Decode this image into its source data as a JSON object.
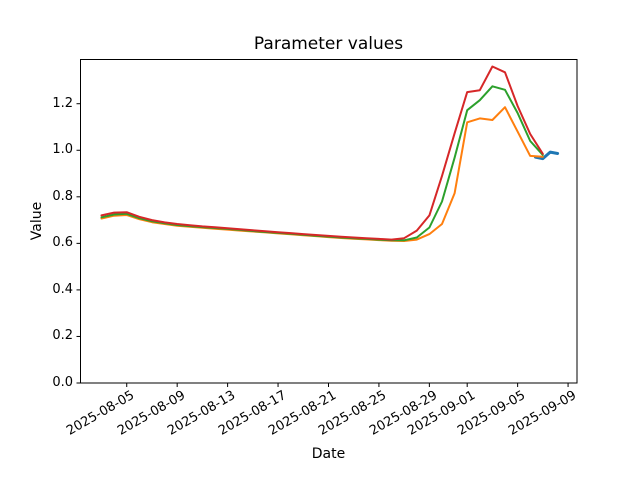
{
  "figure": {
    "background": "#ffffff"
  },
  "chart_data": {
    "type": "line",
    "title": "Parameter values",
    "xlabel": "Date",
    "ylabel": "Value",
    "grid": false,
    "legend": "none",
    "axis_color": "#000000",
    "ylim": [
      0.0,
      1.39
    ],
    "xlim": [
      "2025-08-01T08:00:00Z",
      "2025-09-09T17:00:00Z"
    ],
    "y_tick_labels": [
      "0.0",
      "0.2",
      "0.4",
      "0.6",
      "0.8",
      "1.0",
      "1.2"
    ],
    "x_tick_labels": [
      "2025-08-05",
      "2025-08-09",
      "2025-08-13",
      "2025-08-17",
      "2025-08-21",
      "2025-08-25",
      "2025-08-29",
      "2025-09-01",
      "2025-09-05",
      "2025-09-09"
    ],
    "x_tick_rotation_deg": 30,
    "dates": [
      "2025-08-03",
      "2025-08-04",
      "2025-08-05",
      "2025-08-06",
      "2025-08-07",
      "2025-08-08",
      "2025-08-09",
      "2025-08-10",
      "2025-08-11",
      "2025-08-12",
      "2025-08-13",
      "2025-08-14",
      "2025-08-15",
      "2025-08-16",
      "2025-08-17",
      "2025-08-18",
      "2025-08-19",
      "2025-08-20",
      "2025-08-21",
      "2025-08-22",
      "2025-08-23",
      "2025-08-24",
      "2025-08-25",
      "2025-08-26",
      "2025-08-27",
      "2025-08-28",
      "2025-08-29",
      "2025-08-30",
      "2025-08-31",
      "2025-09-01",
      "2025-09-02",
      "2025-09-03",
      "2025-09-04",
      "2025-09-05",
      "2025-09-06",
      "2025-09-07"
    ],
    "series": [
      {
        "name": "blue",
        "color": "#1f77b4",
        "line_width": 3,
        "x": [
          "2025-09-06T10:00:00Z",
          "2025-09-07T00:00:00Z",
          "2025-09-07T14:00:00Z",
          "2025-09-08T04:00:00Z"
        ],
        "values": [
          0.97,
          0.964,
          0.992,
          0.986
        ]
      },
      {
        "name": "orange",
        "color": "#ff7f0e",
        "line_width": 2,
        "values": [
          0.707,
          0.719,
          0.722,
          0.704,
          0.691,
          0.683,
          0.676,
          0.671,
          0.667,
          0.663,
          0.659,
          0.655,
          0.651,
          0.647,
          0.643,
          0.639,
          0.635,
          0.631,
          0.627,
          0.623,
          0.62,
          0.617,
          0.614,
          0.611,
          0.61,
          0.616,
          0.64,
          0.683,
          0.815,
          1.12,
          1.137,
          1.13,
          1.185,
          1.08,
          0.976,
          0.972
        ]
      },
      {
        "name": "green",
        "color": "#2ca02c",
        "line_width": 2,
        "values": [
          0.712,
          0.724,
          0.727,
          0.708,
          0.695,
          0.686,
          0.679,
          0.674,
          0.67,
          0.666,
          0.662,
          0.658,
          0.653,
          0.649,
          0.645,
          0.641,
          0.637,
          0.633,
          0.629,
          0.625,
          0.622,
          0.619,
          0.616,
          0.613,
          0.613,
          0.625,
          0.668,
          0.78,
          0.968,
          1.172,
          1.215,
          1.275,
          1.26,
          1.16,
          1.04,
          0.98
        ]
      },
      {
        "name": "red",
        "color": "#d62728",
        "line_width": 2,
        "values": [
          0.72,
          0.732,
          0.734,
          0.714,
          0.7,
          0.69,
          0.683,
          0.678,
          0.673,
          0.669,
          0.665,
          0.661,
          0.656,
          0.652,
          0.648,
          0.644,
          0.64,
          0.636,
          0.632,
          0.628,
          0.625,
          0.622,
          0.619,
          0.616,
          0.622,
          0.655,
          0.72,
          0.89,
          1.073,
          1.25,
          1.258,
          1.36,
          1.335,
          1.19,
          1.07,
          0.985
        ]
      }
    ]
  }
}
